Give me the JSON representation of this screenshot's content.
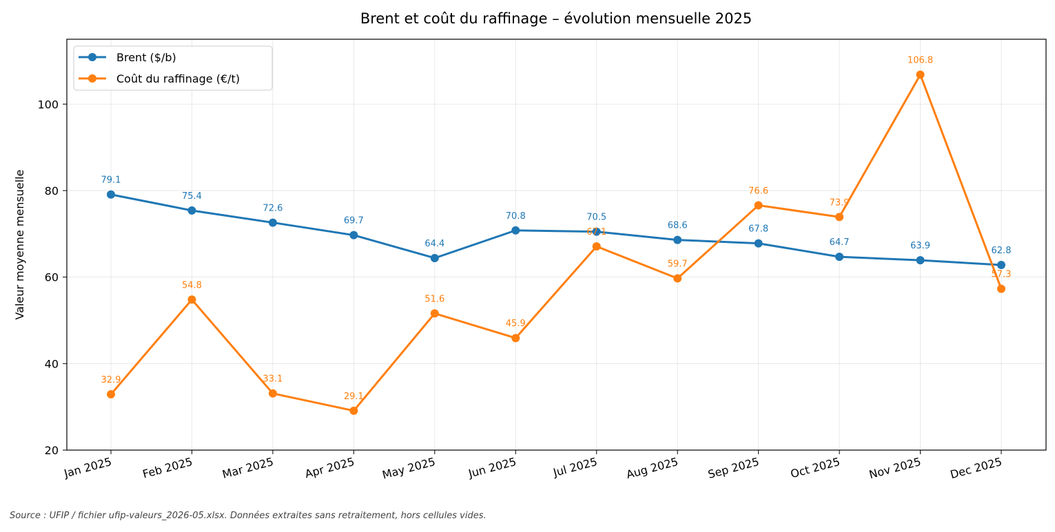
{
  "chart_data": {
    "type": "line",
    "title": "Brent et coût du raffinage – évolution mensuelle 2025",
    "xlabel": "",
    "ylabel": "Valeur moyenne mensuelle",
    "categories": [
      "Jan 2025",
      "Feb 2025",
      "Mar 2025",
      "Apr 2025",
      "May 2025",
      "Jun 2025",
      "Jul 2025",
      "Aug 2025",
      "Sep 2025",
      "Oct 2025",
      "Nov 2025",
      "Dec 2025"
    ],
    "ylim": [
      20,
      115
    ],
    "yticks": [
      20,
      40,
      60,
      80,
      100
    ],
    "grid": true,
    "legend_position": "top-left",
    "series": [
      {
        "name": "Brent ($/b)",
        "color": "#1f77b4",
        "values": [
          79.1,
          75.4,
          72.6,
          69.7,
          64.4,
          70.8,
          70.5,
          68.6,
          67.8,
          64.7,
          63.9,
          62.8
        ]
      },
      {
        "name": "Coût du raffinage (€/t)",
        "color": "#ff7f0e",
        "values": [
          32.9,
          54.8,
          33.1,
          29.1,
          51.6,
          45.9,
          67.1,
          59.7,
          76.6,
          73.9,
          106.8,
          57.3
        ]
      }
    ],
    "source_note": "Source : UFIP / fichier ufip-valeurs_2026-05.xlsx. Données extraites sans retraitement, hors cellules vides."
  }
}
